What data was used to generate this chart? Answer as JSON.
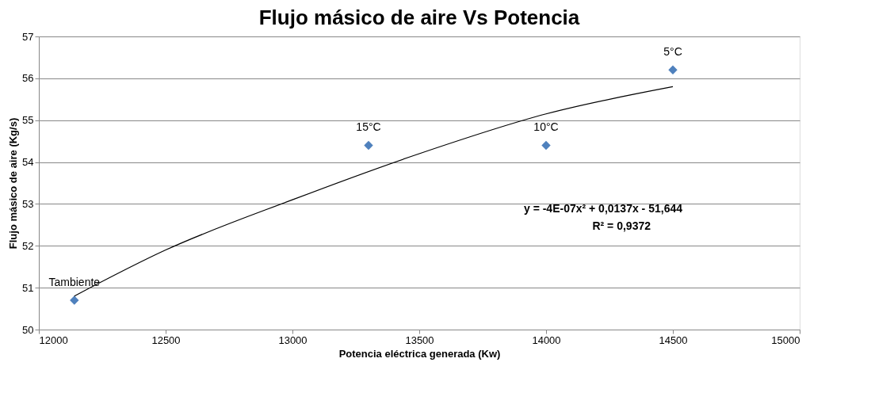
{
  "chart_data": {
    "type": "scatter",
    "title": "Flujo másico de aire Vs Potencia",
    "xlabel": "Potencia eléctrica generada (Kw)",
    "ylabel": "Flujo másico de aire (Kg/s)",
    "x": [
      12140,
      13300,
      14000,
      14500
    ],
    "series": [
      {
        "type": "scatter",
        "color": "#4f81bd",
        "marker": "diamond",
        "values": [
          50.7,
          54.4,
          54.4,
          56.2
        ]
      },
      {
        "type": "line",
        "color": "#000000",
        "marker": "none",
        "x": [
          12140,
          12500,
          13000,
          13500,
          14000,
          14500
        ],
        "values": [
          50.8,
          51.9,
          53.1,
          54.2,
          55.15,
          55.8
        ]
      }
    ],
    "xlim": [
      12000,
      15000
    ],
    "xticks": [
      12000,
      12500,
      13000,
      13500,
      14000,
      14500,
      15000
    ],
    "ylim": [
      50,
      57
    ],
    "yticks": [
      50,
      51,
      52,
      53,
      54,
      55,
      56,
      57
    ],
    "grid": "y",
    "annotations": [
      {
        "text": "Tambiente",
        "x": 12140,
        "y": 50.7
      },
      {
        "text": "15°C",
        "x": 13300,
        "y": 54.4
      },
      {
        "text": "10°C",
        "x": 14000,
        "y": 54.4
      },
      {
        "text": "5°C",
        "x": 14500,
        "y": 56.2
      },
      "y = -4E-07x² + 0,0137x - 51,644",
      "R² = 0,9372"
    ]
  }
}
